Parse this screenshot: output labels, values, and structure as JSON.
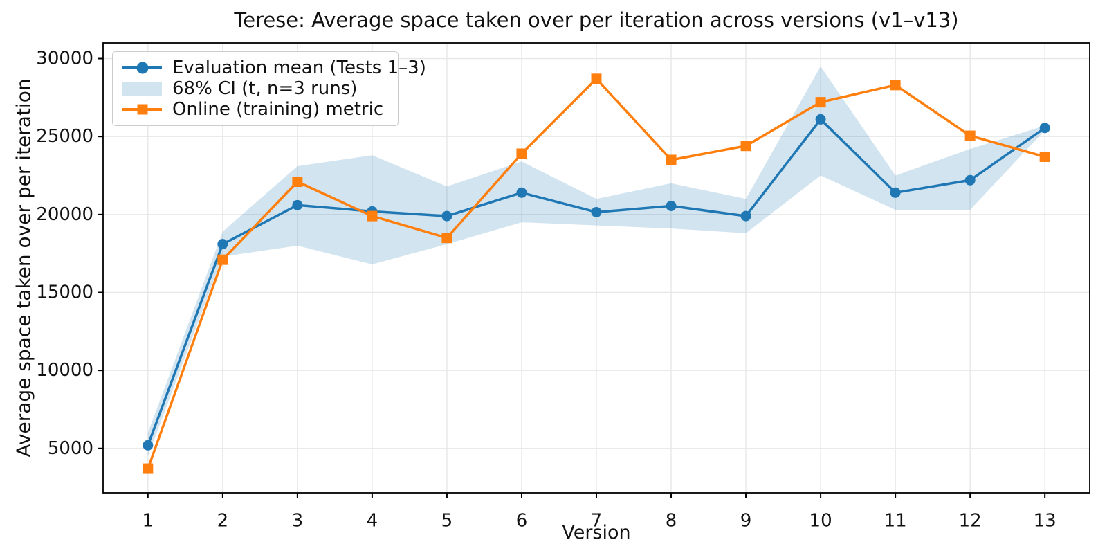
{
  "title": "Terese: Average space taken over per iteration across versions (v1–v13)",
  "xlabel": "Version",
  "ylabel": "Average space taken over per iteration",
  "colors": {
    "evaluation_line": "#1f77b4",
    "online_line": "#ff7f0e",
    "ci_band_fill": "#d2e4f0",
    "grid": "#e7e7e7",
    "spine": "#000000",
    "text": "#111111",
    "background": "#ffffff"
  },
  "legend": {
    "position": "upper-left",
    "items": [
      {
        "label": "Evaluation mean (Tests 1–3)",
        "type": "line-circle",
        "color": "#1f77b4"
      },
      {
        "label": "68% CI (t, n=3 runs)",
        "type": "patch",
        "color": "#d2e4f0"
      },
      {
        "label": "Online (training) metric",
        "type": "line-square",
        "color": "#ff7f0e"
      }
    ]
  },
  "chart_data": {
    "type": "line",
    "title": "Terese: Average space taken over per iteration across versions (v1–v13)",
    "xlabel": "Version",
    "ylabel": "Average space taken over per iteration",
    "x": [
      1,
      2,
      3,
      4,
      5,
      6,
      7,
      8,
      9,
      10,
      11,
      12,
      13
    ],
    "series": [
      {
        "name": "Evaluation mean (Tests 1–3)",
        "color": "#1f77b4",
        "marker": "circle",
        "values": [
          5200,
          18100,
          20600,
          20200,
          19900,
          21400,
          20150,
          20550,
          19900,
          26100,
          21400,
          22200,
          25550
        ]
      },
      {
        "name": "Online (training) metric",
        "color": "#ff7f0e",
        "marker": "square",
        "values": [
          3700,
          17100,
          22100,
          19900,
          18500,
          23900,
          28700,
          23500,
          24400,
          27200,
          28300,
          25050,
          23700
        ]
      }
    ],
    "band": {
      "name": "68% CI (t, n=3 runs)",
      "color": "#1f77b4",
      "alpha": 0.2,
      "lo": [
        4500,
        17300,
        18000,
        16800,
        18100,
        19500,
        19300,
        19100,
        18800,
        22500,
        20300,
        20300,
        25400
      ],
      "hi": [
        6000,
        18900,
        23100,
        23800,
        21800,
        23400,
        21000,
        22000,
        21000,
        29500,
        22500,
        24200,
        25700
      ]
    },
    "xticks": [
      1,
      2,
      3,
      4,
      5,
      6,
      7,
      8,
      9,
      10,
      11,
      12,
      13
    ],
    "yticks": [
      5000,
      10000,
      15000,
      20000,
      25000,
      30000
    ],
    "xlim": [
      0.4,
      13.6
    ],
    "ylim": [
      2150,
      31000
    ],
    "grid": true,
    "legend_position": "upper-left"
  }
}
